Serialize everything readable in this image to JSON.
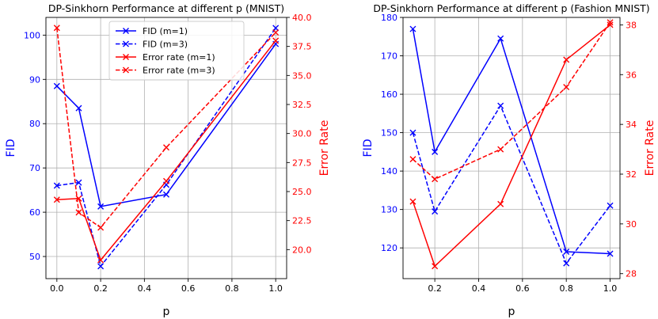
{
  "chart_data": [
    {
      "type": "line",
      "title": "DP-Sinkhorn Performance at different p (MNIST)",
      "xlabel": "p",
      "ylabel": "FID",
      "y2label": "Error Rate",
      "xlim": [
        -0.05,
        1.05
      ],
      "ylim": [
        45,
        104
      ],
      "y2lim": [
        17.5,
        40.0
      ],
      "xticks": [
        0.0,
        0.2,
        0.4,
        0.6,
        0.8,
        1.0
      ],
      "yticks": [
        50,
        60,
        70,
        80,
        90,
        100
      ],
      "y2ticks": [
        20.0,
        22.5,
        25.0,
        27.5,
        30.0,
        32.5,
        35.0,
        37.5,
        40.0
      ],
      "grid": true,
      "legend": "top-center",
      "series": [
        {
          "name": "FID (m=1)",
          "axis": "left",
          "color": "#0000ff",
          "dash": "solid",
          "x": [
            0.0,
            0.1,
            0.2,
            0.5,
            1.0
          ],
          "y": [
            88.5,
            83.5,
            61.3,
            64.0,
            98.0
          ]
        },
        {
          "name": "FID (m=3)",
          "axis": "left",
          "color": "#0000ff",
          "dash": "dashed",
          "x": [
            0.0,
            0.1,
            0.2,
            0.5,
            1.0
          ],
          "y": [
            66.0,
            66.7,
            47.8,
            66.2,
            101.6
          ]
        },
        {
          "name": "Error rate (m=1)",
          "axis": "right",
          "color": "#ff0000",
          "dash": "solid",
          "x": [
            0.0,
            0.1,
            0.2,
            0.5,
            1.0
          ],
          "y": [
            24.3,
            24.4,
            19.1,
            25.9,
            38.0
          ]
        },
        {
          "name": "Error rate (m=3)",
          "axis": "right",
          "color": "#ff0000",
          "dash": "dashed",
          "x": [
            0.0,
            0.1,
            0.2,
            0.5,
            1.0
          ],
          "y": [
            39.1,
            23.2,
            21.9,
            28.8,
            38.7
          ]
        }
      ]
    },
    {
      "type": "line",
      "title": "DP-Sinkhorn Performance at different p (Fashion MNIST)",
      "xlabel": "p",
      "ylabel": "FID",
      "y2label": "Error Rate",
      "xlim": [
        0.055,
        1.045
      ],
      "ylim": [
        112,
        180
      ],
      "y2lim": [
        27.8,
        38.3
      ],
      "xticks": [
        0.2,
        0.4,
        0.6,
        0.8,
        1.0
      ],
      "yticks": [
        120,
        130,
        140,
        150,
        160,
        170,
        180
      ],
      "y2ticks": [
        28,
        30,
        32,
        34,
        36,
        38
      ],
      "grid": true,
      "legend": "none",
      "series": [
        {
          "name": "FID (m=1)",
          "axis": "left",
          "color": "#0000ff",
          "dash": "solid",
          "x": [
            0.1,
            0.2,
            0.5,
            0.8,
            1.0
          ],
          "y": [
            177.0,
            145.0,
            174.5,
            119.0,
            118.5
          ]
        },
        {
          "name": "FID (m=3)",
          "axis": "left",
          "color": "#0000ff",
          "dash": "dashed",
          "x": [
            0.1,
            0.2,
            0.5,
            0.8,
            1.0
          ],
          "y": [
            150.0,
            129.5,
            157.0,
            116.0,
            131.0
          ]
        },
        {
          "name": "Error rate (m=1)",
          "axis": "right",
          "color": "#ff0000",
          "dash": "solid",
          "x": [
            0.1,
            0.2,
            0.5,
            0.8,
            1.0
          ],
          "y": [
            30.9,
            28.3,
            30.8,
            36.6,
            38.0
          ]
        },
        {
          "name": "Error rate (m=3)",
          "axis": "right",
          "color": "#ff0000",
          "dash": "dashed",
          "x": [
            0.1,
            0.2,
            0.5,
            0.8,
            1.0
          ],
          "y": [
            32.6,
            31.8,
            33.0,
            35.5,
            38.1
          ]
        }
      ]
    }
  ]
}
